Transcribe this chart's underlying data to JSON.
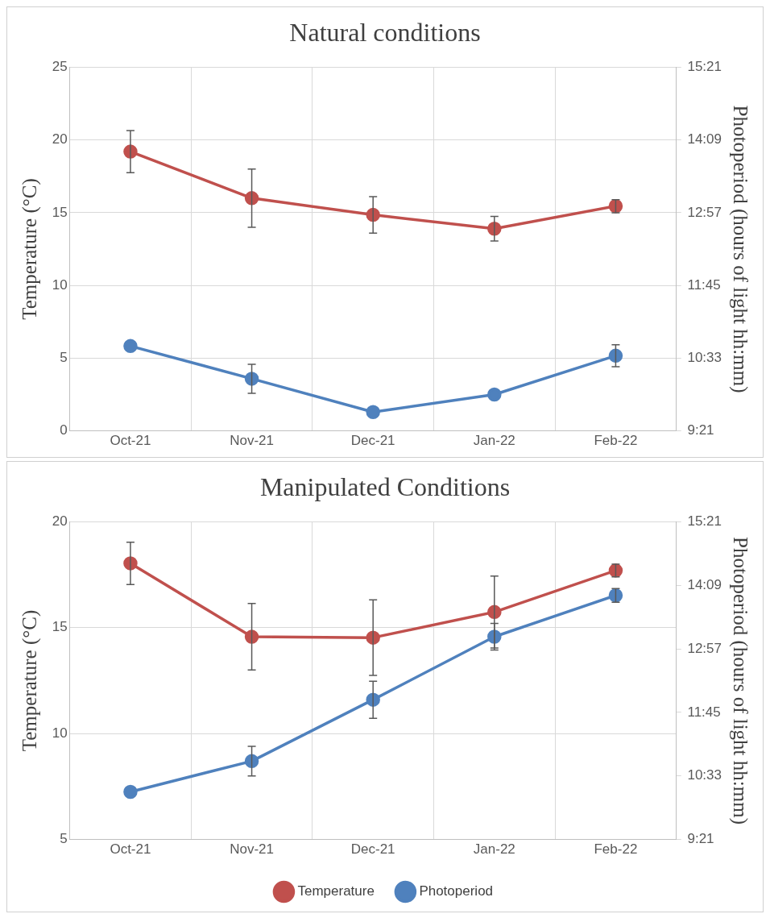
{
  "chart_data": [
    {
      "type": "line",
      "title": "Natural conditions",
      "ylabel": "Temperature (°C)",
      "y2label": "Photoperiod (hours of light hh:mm)",
      "categories": [
        "Oct-21",
        "Nov-21",
        "Dec-21",
        "Jan-22",
        "Feb-22"
      ],
      "series": [
        {
          "color": "#c0504d",
          "values": [
            19.2,
            16,
            14.85,
            13.9,
            15.45
          ],
          "errors": [
            1.45,
            2,
            1.25,
            0.85,
            0.45
          ]
        },
        {
          "color": "#4f81bd",
          "axis": "y2",
          "values": [
            10.75,
            10.21,
            9.66,
            9.95,
            10.59
          ],
          "errors": [
            null,
            0.24,
            null,
            null,
            0.18
          ]
        }
      ],
      "ylim": [
        0,
        25
      ],
      "yticks": [
        0,
        5,
        10,
        15,
        20,
        25
      ],
      "y2lim": [
        9.35,
        15.35
      ],
      "y2ticks": [
        {
          "value": 9.35,
          "label": "9:21"
        },
        {
          "value": 10.55,
          "label": "10:33"
        },
        {
          "value": 11.75,
          "label": "11:45"
        },
        {
          "value": 12.95,
          "label": "12:57"
        },
        {
          "value": 14.15,
          "label": "14:09"
        },
        {
          "value": 15.35,
          "label": "15:21"
        }
      ],
      "grid": true,
      "legend": false,
      "marker": "circle"
    },
    {
      "type": "line",
      "title": "Manipulated Conditions",
      "ylabel": "Temperature (°C)",
      "y2label": "Photoperiod (hours of light hh:mm)",
      "categories": [
        "Oct-21",
        "Nov-21",
        "Dec-21",
        "Jan-22",
        "Feb-22"
      ],
      "series": [
        {
          "name": "Temperature",
          "color": "#c0504d",
          "values": [
            18.04,
            14.57,
            14.53,
            15.74,
            17.7
          ],
          "errors": [
            1.0,
            1.57,
            1.78,
            1.7,
            0.3
          ]
        },
        {
          "name": "Photoperiod",
          "color": "#4f81bd",
          "axis": "y2",
          "values": [
            10.25,
            10.83,
            11.99,
            13.18,
            13.96
          ],
          "errors": [
            null,
            0.28,
            0.35,
            0.25,
            0.13
          ]
        }
      ],
      "ylim": [
        5,
        20
      ],
      "yticks": [
        5,
        10,
        15,
        20
      ],
      "y2lim": [
        9.35,
        15.35
      ],
      "y2ticks": [
        {
          "value": 9.35,
          "label": "9:21"
        },
        {
          "value": 10.55,
          "label": "10:33"
        },
        {
          "value": 11.75,
          "label": "11:45"
        },
        {
          "value": 12.95,
          "label": "12:57"
        },
        {
          "value": 14.15,
          "label": "14:09"
        },
        {
          "value": 15.35,
          "label": "15:21"
        }
      ],
      "grid": true,
      "legend": "bottom",
      "marker": "circle"
    }
  ]
}
